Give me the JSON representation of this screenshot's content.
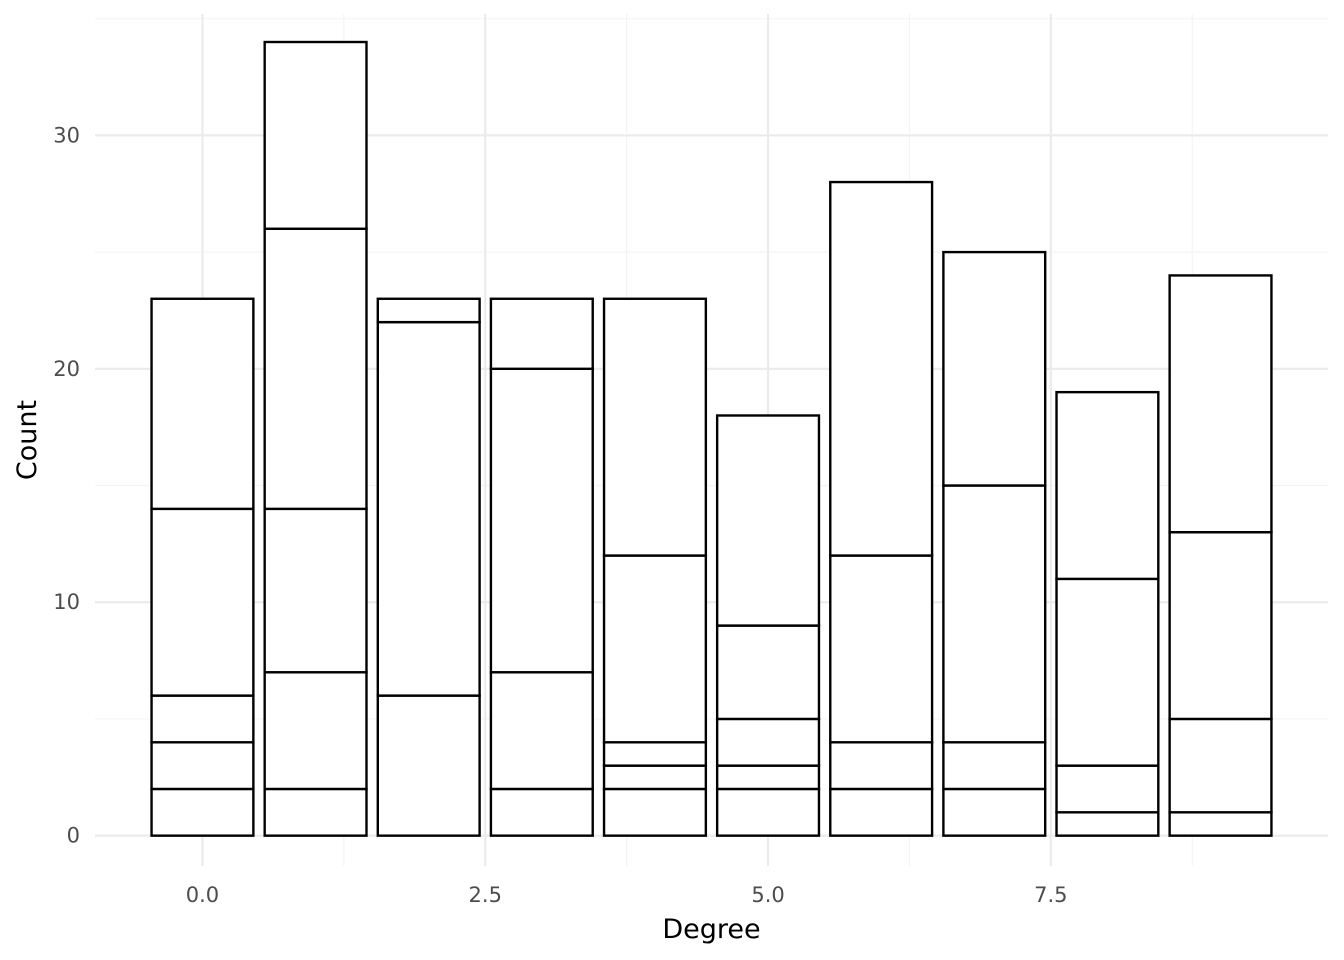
{
  "chart_data": {
    "type": "bar",
    "stacked": true,
    "xlabel": "Degree",
    "ylabel": "Count",
    "xlim": [
      -0.95,
      9.95
    ],
    "ylim": [
      -1.3,
      35.2
    ],
    "x_ticks": [
      0.0,
      2.5,
      5.0,
      7.5
    ],
    "x_tick_labels": [
      "0.0",
      "2.5",
      "5.0",
      "7.5"
    ],
    "y_ticks": [
      0,
      10,
      20,
      30
    ],
    "y_tick_labels": [
      "0",
      "10",
      "20",
      "30"
    ],
    "grid": true,
    "legend": "none",
    "bar_fill": "#ffffff",
    "bar_outline": "#000000",
    "bars": [
      {
        "x": 0,
        "segments": [
          2,
          2,
          2,
          8,
          9
        ],
        "total": 23
      },
      {
        "x": 1,
        "segments": [
          2,
          5,
          7,
          12,
          8
        ],
        "total": 34
      },
      {
        "x": 2,
        "segments": [
          6,
          16,
          1
        ],
        "total": 23
      },
      {
        "x": 3,
        "segments": [
          2,
          5,
          13,
          3
        ],
        "total": 23
      },
      {
        "x": 4,
        "segments": [
          2,
          1,
          1,
          8,
          11
        ],
        "total": 23
      },
      {
        "x": 5,
        "segments": [
          2,
          1,
          2,
          4,
          9
        ],
        "total": 18
      },
      {
        "x": 6,
        "segments": [
          2,
          2,
          8,
          16
        ],
        "total": 28
      },
      {
        "x": 7,
        "segments": [
          2,
          2,
          11,
          10
        ],
        "total": 25
      },
      {
        "x": 8,
        "segments": [
          1,
          2,
          8,
          8
        ],
        "total": 19
      },
      {
        "x": 9,
        "segments": [
          1,
          4,
          8,
          11
        ],
        "total": 24
      }
    ]
  }
}
